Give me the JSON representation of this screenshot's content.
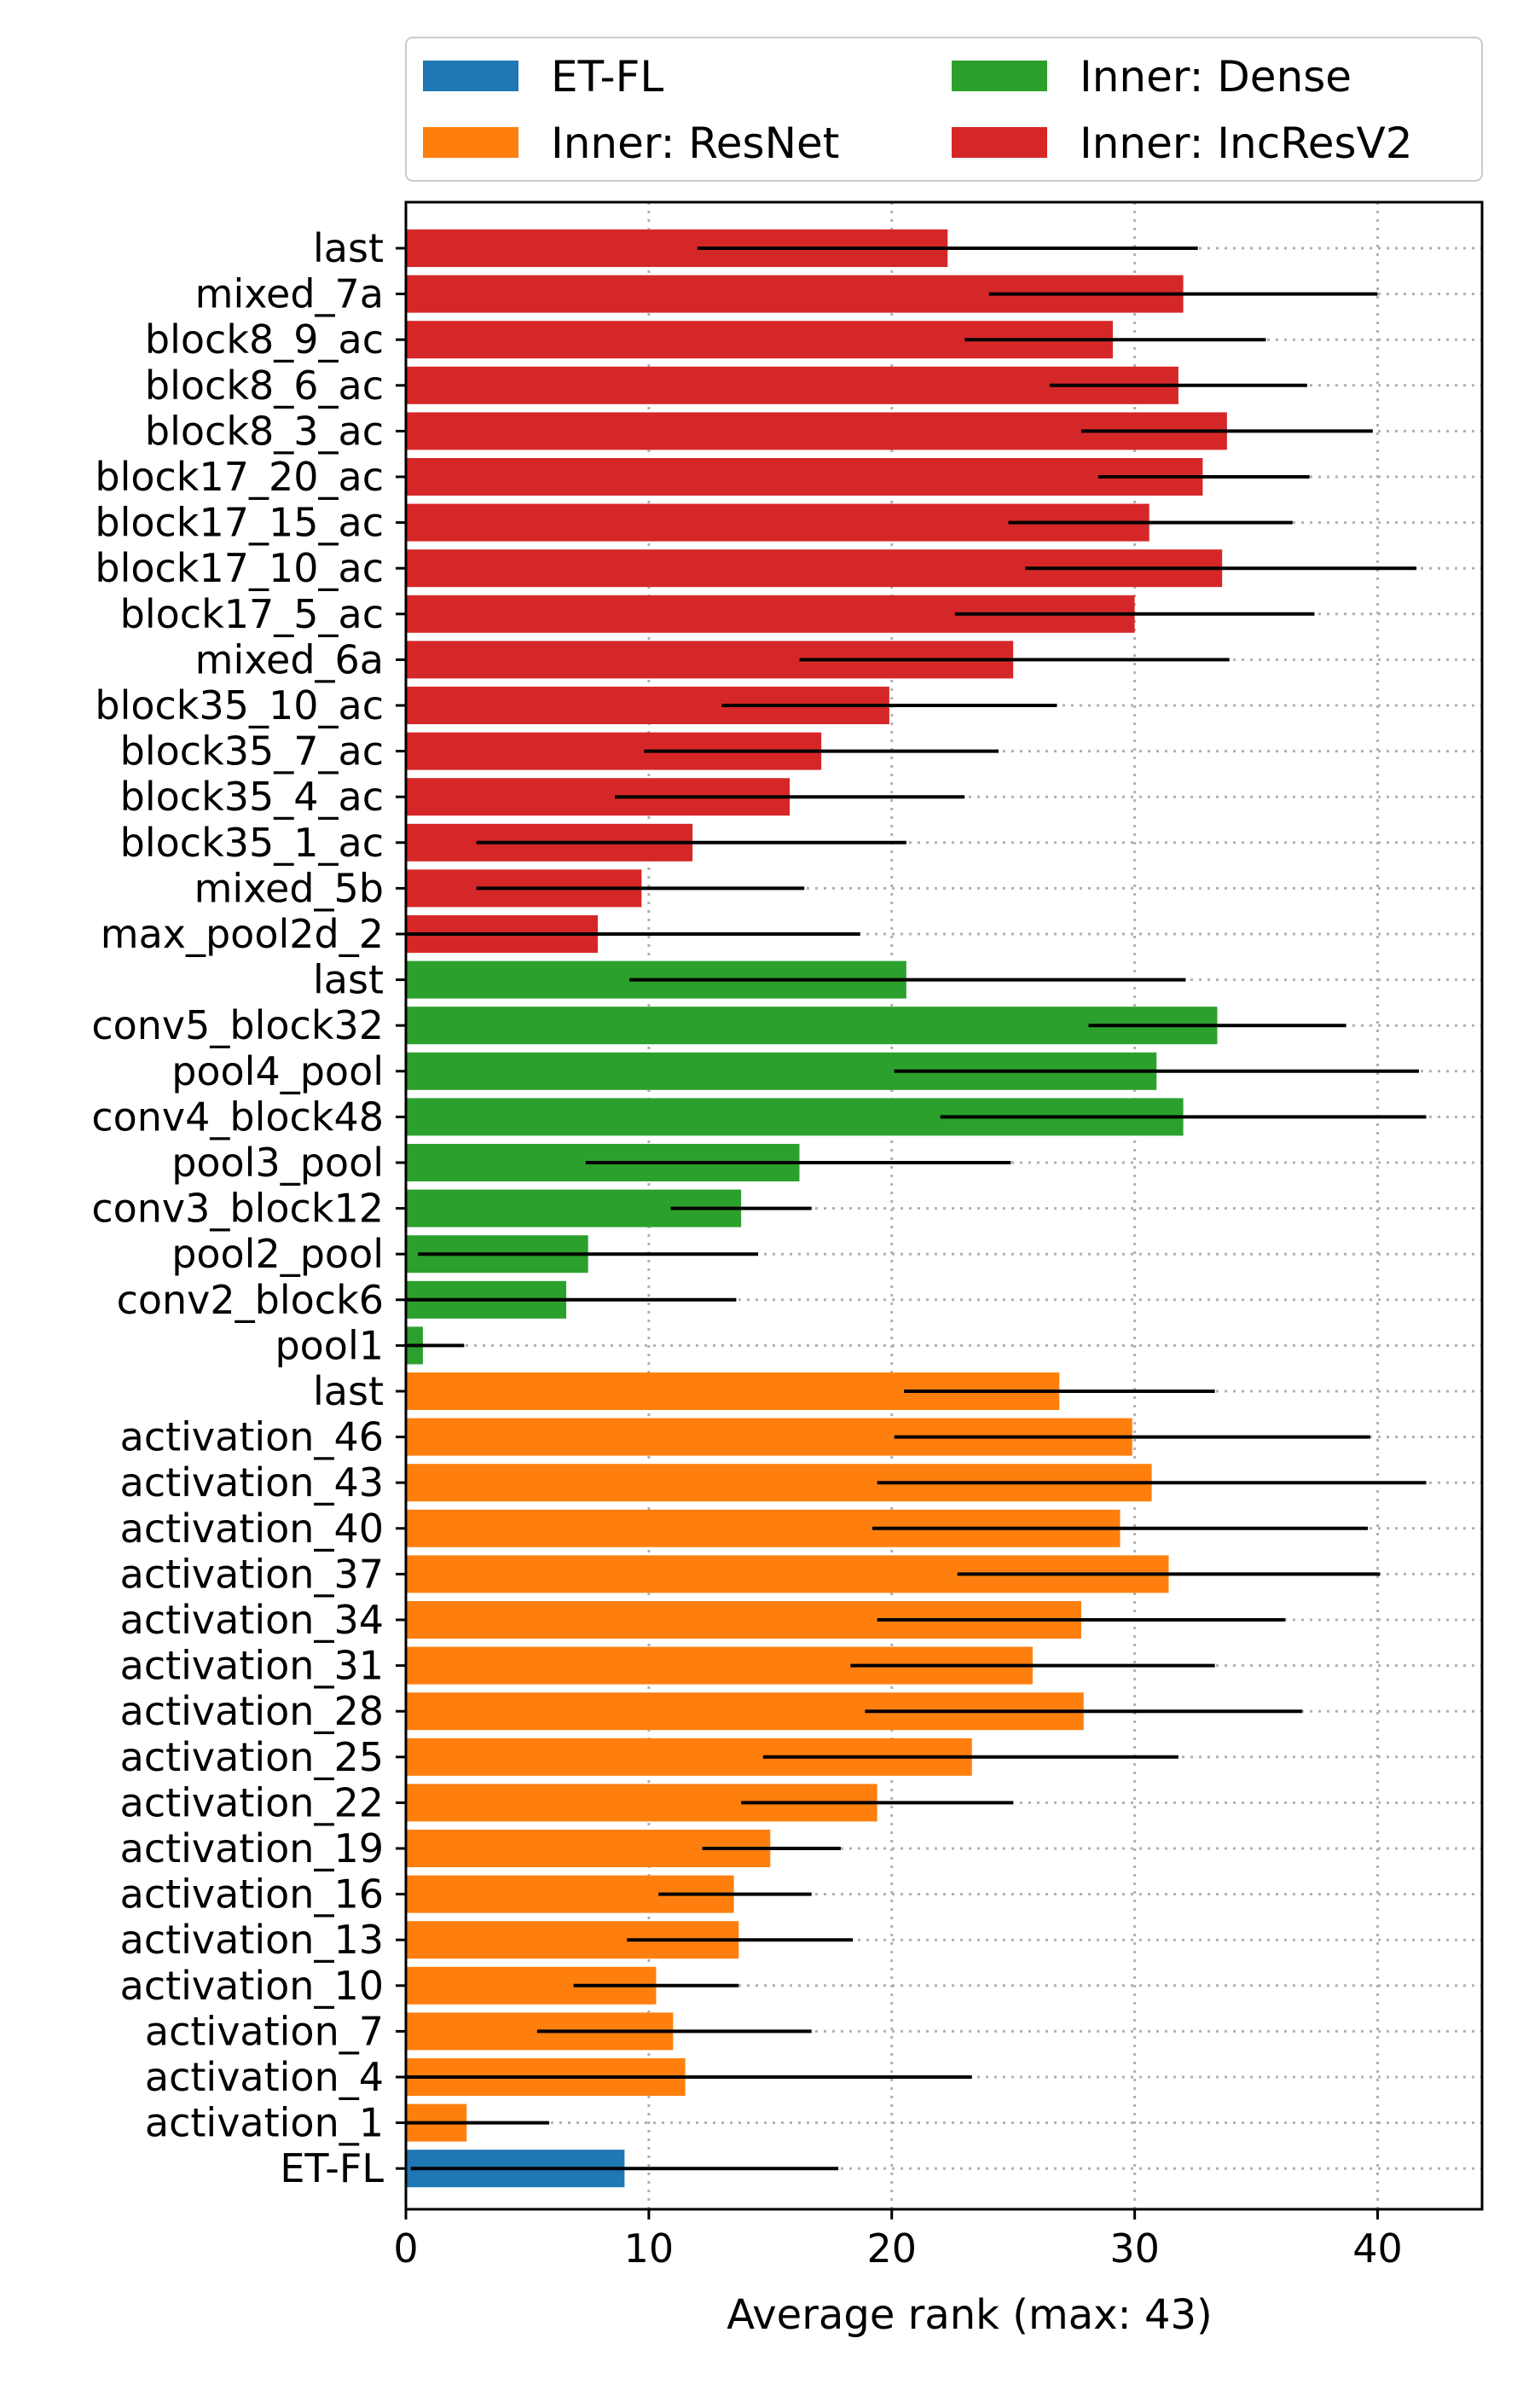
{
  "chart_data": {
    "type": "bar",
    "orientation": "horizontal",
    "xlabel": "Average rank (max: 43)",
    "ylabel": "",
    "xlim": [
      0,
      44.3
    ],
    "xticks": [
      0,
      10,
      20,
      30,
      40
    ],
    "grid": {
      "x": true,
      "y": true,
      "style": "dotted"
    },
    "legend": {
      "placement": "top",
      "columns": 2,
      "entries": [
        {
          "name": "ET-FL",
          "color": "#1f77b4"
        },
        {
          "name": "Inner: ResNet",
          "color": "#ff7f0e"
        },
        {
          "name": "Inner: Dense",
          "color": "#2ca02c"
        },
        {
          "name": "Inner: IncResV2",
          "color": "#d62728"
        }
      ]
    },
    "colors": {
      "ET-FL": "#1f77b4",
      "Inner: ResNet": "#ff7f0e",
      "Inner: Dense": "#2ca02c",
      "Inner: IncResV2": "#d62728"
    },
    "bars": [
      {
        "label": "last",
        "group": "Inner: IncResV2",
        "value": 22.3,
        "err_low": 12.0,
        "err_high": 32.6
      },
      {
        "label": "mixed_7a",
        "group": "Inner: IncResV2",
        "value": 32.0,
        "err_low": 24.0,
        "err_high": 40.0
      },
      {
        "label": "block8_9_ac",
        "group": "Inner: IncResV2",
        "value": 29.1,
        "err_low": 23.0,
        "err_high": 35.4
      },
      {
        "label": "block8_6_ac",
        "group": "Inner: IncResV2",
        "value": 31.8,
        "err_low": 26.5,
        "err_high": 37.1
      },
      {
        "label": "block8_3_ac",
        "group": "Inner: IncResV2",
        "value": 33.8,
        "err_low": 27.8,
        "err_high": 39.8
      },
      {
        "label": "block17_20_ac",
        "group": "Inner: IncResV2",
        "value": 32.8,
        "err_low": 28.5,
        "err_high": 37.2
      },
      {
        "label": "block17_15_ac",
        "group": "Inner: IncResV2",
        "value": 30.6,
        "err_low": 24.8,
        "err_high": 36.5
      },
      {
        "label": "block17_10_ac",
        "group": "Inner: IncResV2",
        "value": 33.6,
        "err_low": 25.5,
        "err_high": 41.6
      },
      {
        "label": "block17_5_ac",
        "group": "Inner: IncResV2",
        "value": 30.0,
        "err_low": 22.6,
        "err_high": 37.4
      },
      {
        "label": "mixed_6a",
        "group": "Inner: IncResV2",
        "value": 25.0,
        "err_low": 16.2,
        "err_high": 33.9
      },
      {
        "label": "block35_10_ac",
        "group": "Inner: IncResV2",
        "value": 19.9,
        "err_low": 13.0,
        "err_high": 26.8
      },
      {
        "label": "block35_7_ac",
        "group": "Inner: IncResV2",
        "value": 17.1,
        "err_low": 9.8,
        "err_high": 24.4
      },
      {
        "label": "block35_4_ac",
        "group": "Inner: IncResV2",
        "value": 15.8,
        "err_low": 8.6,
        "err_high": 23.0
      },
      {
        "label": "block35_1_ac",
        "group": "Inner: IncResV2",
        "value": 11.8,
        "err_low": 2.9,
        "err_high": 20.6
      },
      {
        "label": "mixed_5b",
        "group": "Inner: IncResV2",
        "value": 9.7,
        "err_low": 2.9,
        "err_high": 16.4
      },
      {
        "label": "max_pool2d_2",
        "group": "Inner: IncResV2",
        "value": 7.9,
        "err_low": 0.0,
        "err_high": 18.7
      },
      {
        "label": "last",
        "group": "Inner: Dense",
        "value": 20.6,
        "err_low": 9.2,
        "err_high": 32.1
      },
      {
        "label": "conv5_block32",
        "group": "Inner: Dense",
        "value": 33.4,
        "err_low": 28.1,
        "err_high": 38.7
      },
      {
        "label": "pool4_pool",
        "group": "Inner: Dense",
        "value": 30.9,
        "err_low": 20.1,
        "err_high": 41.7
      },
      {
        "label": "conv4_block48",
        "group": "Inner: Dense",
        "value": 32.0,
        "err_low": 22.0,
        "err_high": 42.0
      },
      {
        "label": "pool3_pool",
        "group": "Inner: Dense",
        "value": 16.2,
        "err_low": 7.4,
        "err_high": 24.9
      },
      {
        "label": "conv3_block12",
        "group": "Inner: Dense",
        "value": 13.8,
        "err_low": 10.9,
        "err_high": 16.7
      },
      {
        "label": "pool2_pool",
        "group": "Inner: Dense",
        "value": 7.5,
        "err_low": 0.5,
        "err_high": 14.5
      },
      {
        "label": "conv2_block6",
        "group": "Inner: Dense",
        "value": 6.6,
        "err_low": 0.0,
        "err_high": 13.6
      },
      {
        "label": "pool1",
        "group": "Inner: Dense",
        "value": 0.7,
        "err_low": 0.0,
        "err_high": 2.4
      },
      {
        "label": "last",
        "group": "Inner: ResNet",
        "value": 26.9,
        "err_low": 20.5,
        "err_high": 33.3
      },
      {
        "label": "activation_46",
        "group": "Inner: ResNet",
        "value": 29.9,
        "err_low": 20.1,
        "err_high": 39.7
      },
      {
        "label": "activation_43",
        "group": "Inner: ResNet",
        "value": 30.7,
        "err_low": 19.4,
        "err_high": 42.0
      },
      {
        "label": "activation_40",
        "group": "Inner: ResNet",
        "value": 29.4,
        "err_low": 19.2,
        "err_high": 39.6
      },
      {
        "label": "activation_37",
        "group": "Inner: ResNet",
        "value": 31.4,
        "err_low": 22.7,
        "err_high": 40.1
      },
      {
        "label": "activation_34",
        "group": "Inner: ResNet",
        "value": 27.8,
        "err_low": 19.4,
        "err_high": 36.2
      },
      {
        "label": "activation_31",
        "group": "Inner: ResNet",
        "value": 25.8,
        "err_low": 18.3,
        "err_high": 33.3
      },
      {
        "label": "activation_28",
        "group": "Inner: ResNet",
        "value": 27.9,
        "err_low": 18.9,
        "err_high": 36.9
      },
      {
        "label": "activation_25",
        "group": "Inner: ResNet",
        "value": 23.3,
        "err_low": 14.7,
        "err_high": 31.8
      },
      {
        "label": "activation_22",
        "group": "Inner: ResNet",
        "value": 19.4,
        "err_low": 13.8,
        "err_high": 25.0
      },
      {
        "label": "activation_19",
        "group": "Inner: ResNet",
        "value": 15.0,
        "err_low": 12.2,
        "err_high": 17.9
      },
      {
        "label": "activation_16",
        "group": "Inner: ResNet",
        "value": 13.5,
        "err_low": 10.4,
        "err_high": 16.7
      },
      {
        "label": "activation_13",
        "group": "Inner: ResNet",
        "value": 13.7,
        "err_low": 9.1,
        "err_high": 18.4
      },
      {
        "label": "activation_10",
        "group": "Inner: ResNet",
        "value": 10.3,
        "err_low": 6.9,
        "err_high": 13.7
      },
      {
        "label": "activation_7",
        "group": "Inner: ResNet",
        "value": 11.0,
        "err_low": 5.4,
        "err_high": 16.7
      },
      {
        "label": "activation_4",
        "group": "Inner: ResNet",
        "value": 11.5,
        "err_low": 0.0,
        "err_high": 23.3
      },
      {
        "label": "activation_1",
        "group": "Inner: ResNet",
        "value": 2.5,
        "err_low": 0.0,
        "err_high": 5.9
      },
      {
        "label": "ET-FL",
        "group": "ET-FL",
        "value": 9.0,
        "err_low": 0.2,
        "err_high": 17.8
      }
    ]
  }
}
